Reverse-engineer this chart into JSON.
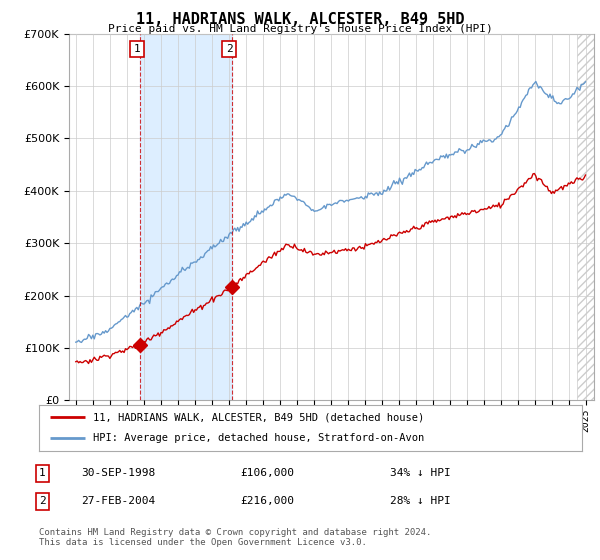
{
  "title": "11, HADRIANS WALK, ALCESTER, B49 5HD",
  "subtitle": "Price paid vs. HM Land Registry's House Price Index (HPI)",
  "red_label": "11, HADRIANS WALK, ALCESTER, B49 5HD (detached house)",
  "blue_label": "HPI: Average price, detached house, Stratford-on-Avon",
  "purchase1_date": "30-SEP-1998",
  "purchase1_price": "£106,000",
  "purchase1_note": "34% ↓ HPI",
  "purchase2_date": "27-FEB-2004",
  "purchase2_price": "£216,000",
  "purchase2_note": "28% ↓ HPI",
  "footer": "Contains HM Land Registry data © Crown copyright and database right 2024.\nThis data is licensed under the Open Government Licence v3.0.",
  "ylim": [
    0,
    700000
  ],
  "yticks": [
    0,
    100000,
    200000,
    300000,
    400000,
    500000,
    600000,
    700000
  ],
  "background_color": "#ffffff",
  "plot_bg_color": "#ffffff",
  "grid_color": "#cccccc",
  "red_color": "#cc0000",
  "blue_color": "#6699cc",
  "vline_color": "#cc0000",
  "shade_color": "#ddeeff",
  "purchase1_x": 1998.75,
  "purchase2_x": 2004.17,
  "xmin": 1995,
  "xmax": 2025
}
